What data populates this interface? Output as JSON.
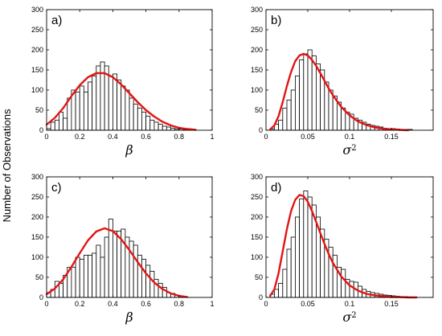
{
  "figure": {
    "ylabel": "Number of Observations"
  },
  "chart_data": [
    {
      "type": "bar",
      "panel_label": "a)",
      "xlabel": "β",
      "xlabel_sup": "",
      "xlim": [
        0,
        1
      ],
      "ylim": [
        0,
        300
      ],
      "xticks": [
        0,
        0.2,
        0.4,
        0.6,
        0.8,
        1
      ],
      "xtick_labels": [
        "0",
        "0.2",
        "0.4",
        "0.6",
        "0.8",
        "1"
      ],
      "yticks": [
        0,
        50,
        100,
        150,
        200,
        250,
        300
      ],
      "ytick_labels": [
        "0",
        "50",
        "100",
        "150",
        "200",
        "250",
        "300"
      ],
      "bin_width": 0.025,
      "bins_start": [
        0.0,
        0.025,
        0.05,
        0.075,
        0.1,
        0.125,
        0.15,
        0.175,
        0.2,
        0.225,
        0.25,
        0.275,
        0.3,
        0.325,
        0.35,
        0.375,
        0.4,
        0.425,
        0.45,
        0.475,
        0.5,
        0.525,
        0.55,
        0.575,
        0.6,
        0.625,
        0.65,
        0.675,
        0.7,
        0.725,
        0.75,
        0.775,
        0.8,
        0.825,
        0.85
      ],
      "counts": [
        4,
        20,
        25,
        45,
        30,
        80,
        100,
        95,
        110,
        95,
        120,
        135,
        160,
        170,
        160,
        135,
        140,
        125,
        110,
        100,
        80,
        65,
        55,
        45,
        35,
        25,
        20,
        15,
        10,
        8,
        5,
        3,
        3,
        2,
        2
      ],
      "series": [
        {
          "name": "",
          "kind": "histogram",
          "color": "#000000"
        },
        {
          "name": "",
          "kind": "fitted-curve",
          "color": "#e31414"
        }
      ],
      "curve": {
        "x": [
          0,
          0.05,
          0.1,
          0.15,
          0.2,
          0.25,
          0.3,
          0.35,
          0.4,
          0.45,
          0.5,
          0.55,
          0.6,
          0.65,
          0.7,
          0.75,
          0.8,
          0.85,
          0.9
        ],
        "y": [
          14,
          31,
          55,
          85,
          112,
          132,
          142,
          142,
          132,
          114,
          92,
          70,
          50,
          34,
          21,
          12,
          6,
          3,
          1
        ]
      }
    },
    {
      "type": "bar",
      "panel_label": "b)",
      "xlabel": "σ",
      "xlabel_sup": "2",
      "xlim": [
        0,
        0.2
      ],
      "ylim": [
        0,
        300
      ],
      "xticks": [
        0,
        0.05,
        0.1,
        0.15
      ],
      "xtick_labels": [
        "0",
        "0.05",
        "0.1",
        "0.15"
      ],
      "yticks": [
        0,
        50,
        100,
        150,
        200,
        250,
        300
      ],
      "ytick_labels": [
        "0",
        "50",
        "100",
        "150",
        "200",
        "250",
        "300"
      ],
      "bin_width": 0.005,
      "bins_start": [
        0.005,
        0.01,
        0.015,
        0.02,
        0.025,
        0.03,
        0.035,
        0.04,
        0.045,
        0.05,
        0.055,
        0.06,
        0.065,
        0.07,
        0.075,
        0.08,
        0.085,
        0.09,
        0.095,
        0.1,
        0.105,
        0.11,
        0.115,
        0.12,
        0.125,
        0.13,
        0.135,
        0.14,
        0.145,
        0.15,
        0.155,
        0.16,
        0.165,
        0.17
      ],
      "counts": [
        3,
        15,
        25,
        55,
        75,
        100,
        135,
        175,
        190,
        200,
        185,
        165,
        150,
        120,
        100,
        85,
        70,
        55,
        45,
        40,
        30,
        25,
        20,
        15,
        12,
        10,
        8,
        5,
        4,
        4,
        3,
        2,
        2,
        2
      ],
      "series": [
        {
          "name": "",
          "kind": "histogram",
          "color": "#000000"
        },
        {
          "name": "",
          "kind": "fitted-curve",
          "color": "#e31414"
        }
      ],
      "curve": {
        "x": [
          0.005,
          0.01,
          0.015,
          0.02,
          0.025,
          0.03,
          0.035,
          0.04,
          0.045,
          0.05,
          0.055,
          0.06,
          0.065,
          0.07,
          0.075,
          0.08,
          0.09,
          0.1,
          0.11,
          0.12,
          0.13,
          0.14,
          0.15,
          0.16,
          0.17
        ],
        "y": [
          2,
          12,
          35,
          70,
          110,
          145,
          172,
          186,
          190,
          186,
          175,
          160,
          142,
          123,
          104,
          87,
          58,
          37,
          22,
          13,
          7,
          4,
          2,
          1,
          0
        ]
      }
    },
    {
      "type": "bar",
      "panel_label": "c)",
      "xlabel": "β",
      "xlabel_sup": "",
      "xlim": [
        0,
        1
      ],
      "ylim": [
        0,
        300
      ],
      "xticks": [
        0,
        0.2,
        0.4,
        0.6,
        0.8,
        1
      ],
      "xtick_labels": [
        "0",
        "0.2",
        "0.4",
        "0.6",
        "0.8",
        "1"
      ],
      "yticks": [
        0,
        50,
        100,
        150,
        200,
        250,
        300
      ],
      "ytick_labels": [
        "0",
        "50",
        "100",
        "150",
        "200",
        "250",
        "300"
      ],
      "bin_width": 0.025,
      "bins_start": [
        0.0,
        0.025,
        0.05,
        0.075,
        0.1,
        0.125,
        0.15,
        0.175,
        0.2,
        0.225,
        0.25,
        0.275,
        0.3,
        0.325,
        0.35,
        0.375,
        0.4,
        0.425,
        0.45,
        0.475,
        0.5,
        0.525,
        0.55,
        0.575,
        0.6,
        0.625,
        0.65,
        0.675,
        0.7,
        0.725,
        0.75,
        0.775,
        0.8,
        0.825
      ],
      "counts": [
        12,
        20,
        40,
        35,
        55,
        75,
        75,
        100,
        95,
        105,
        105,
        110,
        130,
        100,
        150,
        195,
        165,
        165,
        170,
        150,
        140,
        130,
        105,
        95,
        80,
        65,
        45,
        35,
        25,
        12,
        10,
        5,
        4,
        2
      ],
      "series": [
        {
          "name": "",
          "kind": "histogram",
          "color": "#000000"
        },
        {
          "name": "",
          "kind": "fitted-curve",
          "color": "#e31414"
        }
      ],
      "curve": {
        "x": [
          0,
          0.05,
          0.1,
          0.15,
          0.2,
          0.25,
          0.3,
          0.35,
          0.4,
          0.45,
          0.5,
          0.55,
          0.6,
          0.65,
          0.7,
          0.75,
          0.8,
          0.85
        ],
        "y": [
          8,
          22,
          45,
          76,
          110,
          142,
          164,
          172,
          165,
          145,
          118,
          88,
          60,
          37,
          21,
          10,
          4,
          1
        ]
      }
    },
    {
      "type": "bar",
      "panel_label": "d)",
      "xlabel": "σ",
      "xlabel_sup": "2",
      "xlim": [
        0,
        0.2
      ],
      "ylim": [
        0,
        300
      ],
      "xticks": [
        0,
        0.05,
        0.1,
        0.15
      ],
      "xtick_labels": [
        "0",
        "0.05",
        "0.1",
        "0.15"
      ],
      "yticks": [
        0,
        50,
        100,
        150,
        200,
        250,
        300
      ],
      "ytick_labels": [
        "0",
        "50",
        "100",
        "150",
        "200",
        "250",
        "300"
      ],
      "bin_width": 0.005,
      "bins_start": [
        0.005,
        0.01,
        0.015,
        0.02,
        0.025,
        0.03,
        0.035,
        0.04,
        0.045,
        0.05,
        0.055,
        0.06,
        0.065,
        0.07,
        0.075,
        0.08,
        0.085,
        0.09,
        0.095,
        0.1,
        0.105,
        0.11,
        0.115,
        0.12,
        0.125,
        0.13,
        0.135,
        0.14,
        0.145,
        0.15,
        0.155,
        0.16,
        0.165,
        0.17,
        0.175
      ],
      "counts": [
        8,
        20,
        35,
        70,
        120,
        150,
        200,
        245,
        265,
        250,
        230,
        200,
        170,
        145,
        125,
        105,
        75,
        70,
        45,
        40,
        38,
        28,
        20,
        15,
        12,
        10,
        8,
        6,
        5,
        4,
        3,
        2,
        2,
        1,
        1
      ],
      "series": [
        {
          "name": "",
          "kind": "histogram",
          "color": "#000000"
        },
        {
          "name": "",
          "kind": "fitted-curve",
          "color": "#e31414"
        }
      ],
      "curve": {
        "x": [
          0.005,
          0.01,
          0.015,
          0.02,
          0.025,
          0.03,
          0.035,
          0.04,
          0.045,
          0.05,
          0.055,
          0.06,
          0.065,
          0.07,
          0.075,
          0.08,
          0.09,
          0.1,
          0.11,
          0.12,
          0.13,
          0.14,
          0.15,
          0.16,
          0.17,
          0.18
        ],
        "y": [
          4,
          20,
          60,
          115,
          170,
          215,
          243,
          255,
          252,
          238,
          215,
          188,
          160,
          133,
          108,
          86,
          52,
          30,
          17,
          9,
          5,
          3,
          1,
          1,
          0,
          0
        ]
      }
    }
  ]
}
